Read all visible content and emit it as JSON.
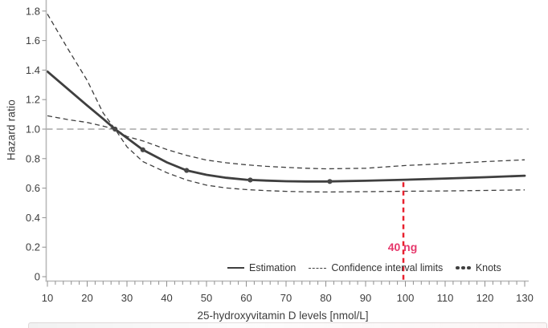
{
  "colors": {
    "curve": "#3f3f3f",
    "axis_line": "#b9b9b9",
    "reference_line": "#949494",
    "tick_text": "#3d3d3d",
    "marker_line": "#e8212e",
    "marker_label": "#e6376b",
    "knot": "#474747"
  },
  "chart_data": {
    "type": "line",
    "title": "",
    "xlabel": "25-hydroxyvitamin D levels [nmol/L]",
    "ylabel": "Hazard ratio",
    "x_range": [
      10,
      130
    ],
    "y_range": [
      0,
      1.8
    ],
    "x_major_ticks": [
      10,
      20,
      30,
      40,
      50,
      60,
      70,
      80,
      90,
      100,
      110,
      120,
      130
    ],
    "x_tick_labels": [
      "10",
      "20",
      "30",
      "40",
      "50",
      "60",
      "70",
      "80",
      "90",
      "100",
      "110",
      "120",
      "130"
    ],
    "x_minor_tick_step": 2,
    "y_ticks": [
      0,
      0.2,
      0.4,
      0.6,
      0.8,
      1.0,
      1.2,
      1.4,
      1.6,
      1.8
    ],
    "y_tick_labels": [
      "0",
      "0.2",
      "0.4",
      "0.6",
      "0.8",
      "1.0",
      "1.2",
      "1.4",
      "1.6",
      "1.8"
    ],
    "grid": false,
    "reference_line_y": 1.0,
    "x": [
      10,
      15,
      20,
      24,
      27,
      30,
      34,
      40,
      45,
      50,
      55,
      60,
      65,
      70,
      75,
      80,
      90,
      100,
      110,
      120,
      130
    ],
    "series": [
      {
        "name": "Estimation",
        "style": "solid",
        "values": [
          1.39,
          1.275,
          1.16,
          1.07,
          1.0,
          0.94,
          0.86,
          0.775,
          0.72,
          0.69,
          0.67,
          0.657,
          0.651,
          0.647,
          0.645,
          0.645,
          0.65,
          0.657,
          0.665,
          0.674,
          0.684
        ]
      },
      {
        "name": "Confidence interval limit (steep)",
        "style": "dashed",
        "values": [
          1.78,
          1.55,
          1.33,
          1.11,
          1.0,
          0.88,
          0.78,
          0.705,
          0.655,
          0.62,
          0.601,
          0.59,
          0.583,
          0.578,
          0.575,
          0.574,
          0.576,
          0.579,
          0.581,
          0.584,
          0.588
        ]
      },
      {
        "name": "Confidence interval limit (shallow)",
        "style": "dashed",
        "values": [
          1.09,
          1.065,
          1.045,
          1.02,
          1.0,
          0.95,
          0.92,
          0.862,
          0.822,
          0.79,
          0.772,
          0.758,
          0.748,
          0.741,
          0.735,
          0.731,
          0.735,
          0.753,
          0.766,
          0.78,
          0.792
        ]
      }
    ],
    "knots": [
      [
        27,
        1.0
      ],
      [
        34,
        0.86
      ],
      [
        45,
        0.72
      ],
      [
        61,
        0.655
      ],
      [
        81,
        0.645
      ]
    ],
    "marker": {
      "x_value": 99.5,
      "label": "40 ng",
      "y_top": 0.64,
      "y_bottom": -0.04
    },
    "legend": [
      {
        "swatch": "solid-line",
        "label": "Estimation"
      },
      {
        "swatch": "dashed-line",
        "label": "Confidence interval limits"
      },
      {
        "swatch": "dots",
        "label": "Knots"
      }
    ],
    "legend_position": "bottom-right-inside"
  }
}
